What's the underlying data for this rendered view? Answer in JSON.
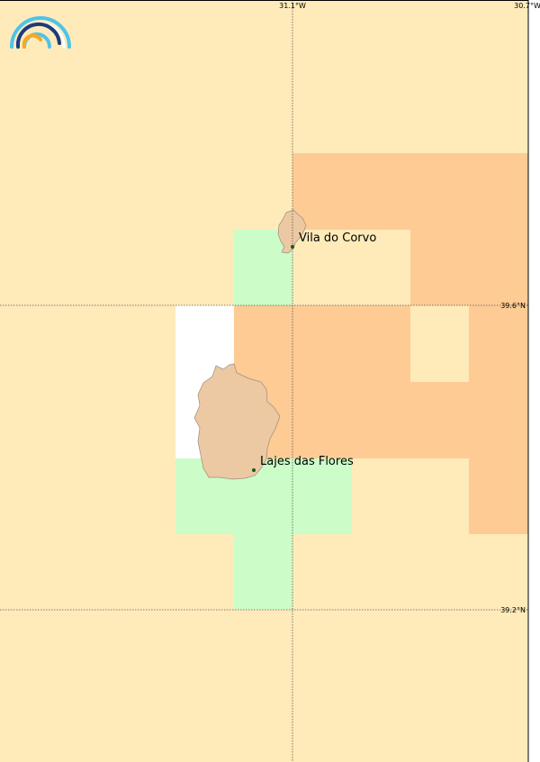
{
  "map": {
    "lon_labels": [
      "31.1°W",
      "30.7°W"
    ],
    "lat_labels": [
      "39.6°N",
      "39.2°N"
    ],
    "places": [
      "Vila do Corvo",
      "Lajes das Flores"
    ]
  }
}
